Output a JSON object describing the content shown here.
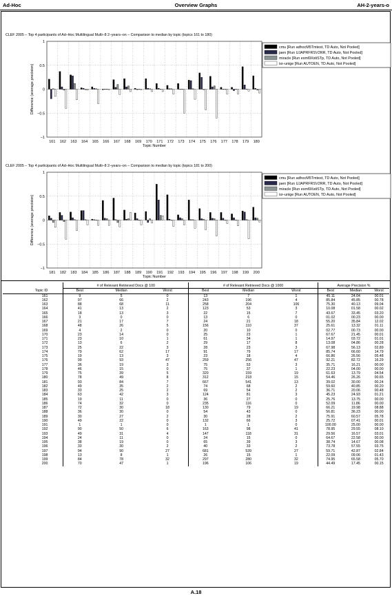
{
  "header": {
    "left": "Ad-Hoc",
    "center": "Overview Graphs",
    "right": "AH-2-years-o"
  },
  "legend_entries": [
    "cmu [Run adhocM5Tmtest, TD Auto, Not Pooled]",
    "jaen [Run UJAPRFRSV2RR, TD Auto, Not Pooled]",
    "miracle [Run esml9XstiSTp, TD Auto, Not Pooled]",
    "isi–unige [Run AUTOEN, TD Auto, Not Pooled]"
  ],
  "series_colors": [
    "#000000",
    "#2a2a4a",
    "#8c9494",
    "#ffffff"
  ],
  "chart_data": [
    {
      "type": "bar",
      "title": "CLEF 2005 – Top 4 participants of Ad–Hoc Multilingual Multi–8 2–years–on – Comparison to median by topic (topics 161 to 180)",
      "xlabel": "Topic Number",
      "ylabel": "Difference (average precision)",
      "ylim": [
        -1,
        1
      ],
      "yticks": [
        "1",
        "0.5",
        "0",
        "−0.5",
        "−1"
      ],
      "grid": true,
      "legend": "top-right",
      "categories": [
        "161",
        "162",
        "163",
        "164",
        "165",
        "166",
        "167",
        "168",
        "169",
        "170",
        "171",
        "172",
        "173",
        "174",
        "175",
        "176",
        "177",
        "178",
        "179",
        "180"
      ],
      "series": [
        {
          "name": "cmu",
          "values": [
            0.21,
            0.37,
            0.3,
            0.03,
            0.05,
            -0.01,
            0.2,
            0.22,
            0.02,
            0.22,
            0.12,
            0.08,
            0.12,
            0.19,
            0.34,
            0.27,
            0.04,
            0.04,
            0.47,
            0.28
          ]
        },
        {
          "name": "jaen",
          "values": [
            -0.2,
            0.05,
            0.28,
            0.02,
            0.02,
            0.0,
            0.04,
            0.05,
            -0.01,
            0.02,
            0.02,
            0.01,
            0.0,
            0.18,
            0.25,
            0.05,
            0.0,
            -0.03,
            0.09,
            0.02
          ]
        },
        {
          "name": "miracle",
          "values": [
            0.01,
            -0.02,
            0.12,
            -0.01,
            0.01,
            0.0,
            0.1,
            0.07,
            0.0,
            0.01,
            0.0,
            0.01,
            0.0,
            0.01,
            -0.01,
            0.07,
            0.0,
            0.0,
            0.0,
            -0.02
          ]
        },
        {
          "name": "isi–unige",
          "values": [
            -0.15,
            -0.4,
            -0.22,
            -0.02,
            -0.3,
            -0.01,
            -0.11,
            -0.05,
            -0.01,
            -0.05,
            -0.05,
            -0.1,
            -0.5,
            -0.21,
            -0.43,
            -0.6,
            -0.1,
            -0.1,
            -0.04,
            -0.08
          ]
        }
      ]
    },
    {
      "type": "bar",
      "title": "CLEF 2005 – Top 4 participants of Ad–Hoc Multilingual Multi–8 2–years–on – Comparison to median by topic (topics 181 to 200)",
      "xlabel": "Topic Number",
      "ylabel": "Difference (average precision)",
      "ylim": [
        -1,
        1
      ],
      "yticks": [
        "1",
        "0.5",
        "0",
        "−0.5",
        "−1"
      ],
      "grid": true,
      "legend": "top-right",
      "categories": [
        "181",
        "182",
        "183",
        "184",
        "185",
        "186",
        "187",
        "188",
        "189",
        "190",
        "191",
        "192",
        "193",
        "194",
        "195",
        "196",
        "197",
        "198",
        "199",
        "200"
      ],
      "series": [
        {
          "name": "cmu",
          "values": [
            0.09,
            0.16,
            0.17,
            0.2,
            0.02,
            0.41,
            0.46,
            0.21,
            0.15,
            0.18,
            0.75,
            0.53,
            0.11,
            0.42,
            0.24,
            0.16,
            0.16,
            0.13,
            0.19,
            0.27
          ]
        },
        {
          "name": "jaen",
          "values": [
            0.04,
            0.1,
            0.05,
            0.2,
            0.01,
            0.04,
            0.01,
            0.02,
            0.03,
            -0.05,
            0.42,
            0.02,
            0.05,
            0.01,
            0.03,
            0.04,
            0.04,
            0.05,
            0.17,
            0.05
          ]
        },
        {
          "name": "miracle",
          "values": [
            -0.05,
            -0.03,
            0.01,
            0.01,
            0.0,
            0.03,
            -0.05,
            0.03,
            0.0,
            0.03,
            0.1,
            0.0,
            0.03,
            0.01,
            0.02,
            0.03,
            0.0,
            0.0,
            0.01,
            0.04
          ]
        },
        {
          "name": "isi–unige",
          "values": [
            -0.15,
            -0.4,
            -0.22,
            -0.1,
            -0.11,
            -0.11,
            -0.14,
            0.16,
            -0.1,
            -0.06,
            0.09,
            -0.13,
            -0.1,
            -0.17,
            -0.2,
            -0.33,
            -0.07,
            -0.12,
            -0.39,
            -0.04
          ]
        }
      ]
    }
  ],
  "table": {
    "groups": [
      "# of Relevant Retrieved Docs @ 100",
      "# of Relevant Retrieved Docs @ 1000",
      "Average Precision %"
    ],
    "columns": [
      "Topic ID",
      "Best",
      "Median",
      "Worst",
      "Best",
      "Median",
      "Worst",
      "Best",
      "Median",
      "Worst"
    ],
    "rows": [
      [
        "161",
        "9",
        "5",
        "0",
        "13",
        "7",
        "1",
        "45.11",
        "24.04",
        "00.01"
      ],
      [
        "162",
        "97",
        "66",
        "2",
        "243",
        "196",
        "4",
        "85.84",
        "45.85",
        "00.78"
      ],
      [
        "163",
        "88",
        "68",
        "11",
        "258",
        "204",
        "106",
        "75.30",
        "40.13",
        "09.04"
      ],
      [
        "164",
        "41",
        "13",
        "2",
        "123",
        "53",
        "3",
        "10.08",
        "01.58",
        "00.02"
      ],
      [
        "165",
        "18",
        "13",
        "3",
        "22",
        "15",
        "7",
        "43.67",
        "33.45",
        "03.20"
      ],
      [
        "166",
        "3",
        "0",
        "0",
        "13",
        "6",
        "0",
        "01.02",
        "00.23",
        "00.00"
      ],
      [
        "167",
        "21",
        "17",
        "7",
        "24",
        "21",
        "18",
        "55.20",
        "35.84",
        "12.02"
      ],
      [
        "168",
        "48",
        "26",
        "5",
        "156",
        "110",
        "37",
        "25.61",
        "13.32",
        "01.11"
      ],
      [
        "169",
        "4",
        "2",
        "0",
        "20",
        "10",
        "0",
        "02.77",
        "00.73",
        "00.00"
      ],
      [
        "170",
        "23",
        "14",
        "0",
        "25",
        "23",
        "1",
        "67.67",
        "21.45",
        "00.01"
      ],
      [
        "171",
        "23",
        "10",
        "1",
        "61",
        "34",
        "1",
        "14.97",
        "03.72",
        "01.01"
      ],
      [
        "172",
        "13",
        "6",
        "2",
        "29",
        "17",
        "8",
        "13.08",
        "04.86",
        "00.28"
      ],
      [
        "173",
        "25",
        "22",
        "3",
        "28",
        "23",
        "3",
        "67.98",
        "56.13",
        "02.89"
      ],
      [
        "174",
        "79",
        "62",
        "17",
        "91",
        "79",
        "17",
        "85.74",
        "66.60",
        "14.79"
      ],
      [
        "175",
        "19",
        "13",
        "3",
        "23",
        "18",
        "4",
        "66.86",
        "26.56",
        "05.48"
      ],
      [
        "176",
        "99",
        "93",
        "47",
        "259",
        "256",
        "47",
        "92.21",
        "82.72",
        "16.29"
      ],
      [
        "177",
        "36",
        "19",
        "3",
        "75",
        "53",
        "3",
        "35.71",
        "16.21",
        "00.00"
      ],
      [
        "178",
        "46",
        "15",
        "0",
        "75",
        "37",
        "1",
        "22.23",
        "04.00",
        "00.00"
      ],
      [
        "179",
        "75",
        "39",
        "5",
        "320",
        "159",
        "19",
        "61.63",
        "13.79",
        "04.54"
      ],
      [
        "180",
        "78",
        "49",
        "8",
        "312",
        "218",
        "15",
        "54.46",
        "26.26",
        "00.65"
      ],
      [
        "181",
        "93",
        "84",
        "7",
        "667",
        "541",
        "13",
        "39.02",
        "30.00",
        "00.24"
      ],
      [
        "182",
        "49",
        "35",
        "2",
        "74",
        "68",
        "2",
        "59.60",
        "40.85",
        "00.20"
      ],
      [
        "183",
        "33",
        "25",
        "2",
        "69",
        "54",
        "2",
        "36.71",
        "20.06",
        "00.48"
      ],
      [
        "184",
        "63",
        "42",
        "3",
        "124",
        "81",
        "3",
        "45.23",
        "24.93",
        "01.21"
      ],
      [
        "185",
        "19",
        "11",
        "0",
        "36",
        "27",
        "0",
        "25.76",
        "13.75",
        "00.00"
      ],
      [
        "186",
        "74",
        "32",
        "0",
        "235",
        "116",
        "0",
        "52.09",
        "11.86",
        "00.00"
      ],
      [
        "187",
        "72",
        "30",
        "18",
        "130",
        "79",
        "19",
        "66.21",
        "19.98",
        "08.88"
      ],
      [
        "188",
        "36",
        "30",
        "0",
        "54",
        "43",
        "0",
        "56.81",
        "36.23",
        "00.00"
      ],
      [
        "189",
        "30",
        "27",
        "2",
        "30",
        "28",
        "2",
        "75.91",
        "60.57",
        "05.78"
      ],
      [
        "190",
        "49",
        "22",
        "0",
        "132",
        "66",
        "3",
        "25.72",
        "07.41",
        "00.01"
      ],
      [
        "191",
        "1",
        "1",
        "0",
        "1",
        "1",
        "0",
        "100.00",
        "25.00",
        "00.00"
      ],
      [
        "192",
        "90",
        "50",
        "6",
        "163",
        "98",
        "41",
        "78.95",
        "29.55",
        "08.10"
      ],
      [
        "193",
        "49",
        "31",
        "4",
        "147",
        "118",
        "31",
        "29.56",
        "16.57",
        "03.01"
      ],
      [
        "194",
        "24",
        "11",
        "0",
        "24",
        "15",
        "0",
        "64.67",
        "22.58",
        "00.00"
      ],
      [
        "195",
        "38",
        "19",
        "0",
        "65",
        "39",
        "3",
        "38.74",
        "14.67",
        "00.08"
      ],
      [
        "196",
        "33",
        "30",
        "2",
        "40",
        "33",
        "2",
        "73.78",
        "57.55",
        "03.75"
      ],
      [
        "197",
        "94",
        "90",
        "27",
        "681",
        "539",
        "27",
        "59.71",
        "42.87",
        "02.84"
      ],
      [
        "198",
        "13",
        "8",
        "1",
        "26",
        "15",
        "1",
        "22.09",
        "09.06",
        "01.43"
      ],
      [
        "199",
        "84",
        "78",
        "32",
        "297",
        "280",
        "32",
        "74.95",
        "65.58",
        "05.70"
      ],
      [
        "200",
        "70",
        "47",
        "1",
        "196",
        "106",
        "19",
        "44.49",
        "17.45",
        "00.15"
      ]
    ]
  },
  "footer": {
    "page": "A.18"
  }
}
